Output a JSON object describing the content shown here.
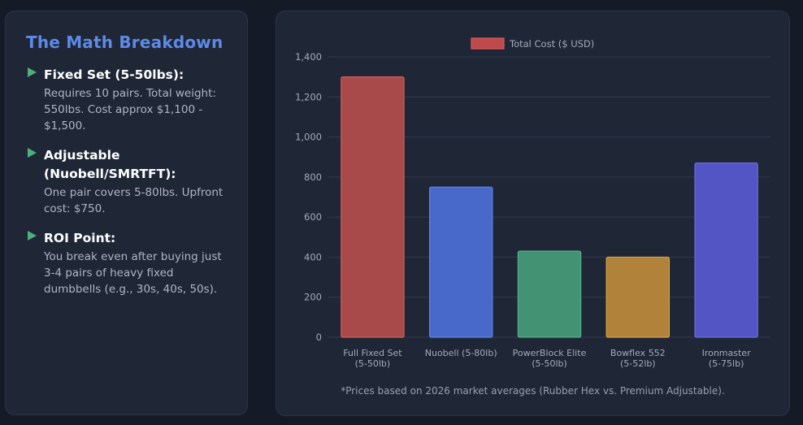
{
  "sidebar": {
    "title": "The Math Breakdown",
    "items": [
      {
        "heading": "Fixed Set (5-50lbs):",
        "description": "Requires 10 pairs. Total weight: 550lbs. Cost approx $1,100 - $1,500."
      },
      {
        "heading": "Adjustable (Nuobell/SMRTFT):",
        "description": "One pair covers 5-80lbs. Upfront cost: $750."
      },
      {
        "heading": "ROI Point:",
        "description": "You break even after buying just 3-4 pairs of heavy fixed dumbbells (e.g., 30s, 40s, 50s)."
      }
    ],
    "marker_icon": "triangle-right-icon",
    "colors": {
      "title": "#5d8ae6",
      "marker": "#4caf7d"
    }
  },
  "chart_data": {
    "type": "bar",
    "categories": [
      [
        "Full Fixed Set",
        "(5-50lb)"
      ],
      [
        "Nuobell (5-80lb)"
      ],
      [
        "PowerBlock Elite",
        "(5-50lb)"
      ],
      [
        "Bowflex 552",
        "(5-52lb)"
      ],
      [
        "Ironmaster",
        "(5-75lb)"
      ]
    ],
    "series": [
      {
        "name": "Total Cost ($ USD)",
        "values": [
          1300,
          750,
          430,
          400,
          870
        ]
      }
    ],
    "bar_colors": [
      "#a84a4a",
      "#4869c9",
      "#439273",
      "#b0823a",
      "#5355c4"
    ],
    "bar_border_colors": [
      "#d45c5c",
      "#5f83e8",
      "#52b088",
      "#d9a343",
      "#6b6be0"
    ],
    "legend_color": "#bd4b4b",
    "legend_border_color": "#e05a5a",
    "ylim": [
      0,
      1400
    ],
    "yticks": [
      0,
      200,
      400,
      600,
      800,
      1000,
      1200,
      1400
    ],
    "ytick_labels": [
      "0",
      "200",
      "400",
      "600",
      "800",
      "1,000",
      "1,200",
      "1,400"
    ],
    "legend_position": "top-center",
    "grid": true,
    "title": "",
    "xlabel": "",
    "ylabel": ""
  },
  "footnote": "*Prices based on 2026 market averages (Rubber Hex vs. Premium Adjustable)."
}
